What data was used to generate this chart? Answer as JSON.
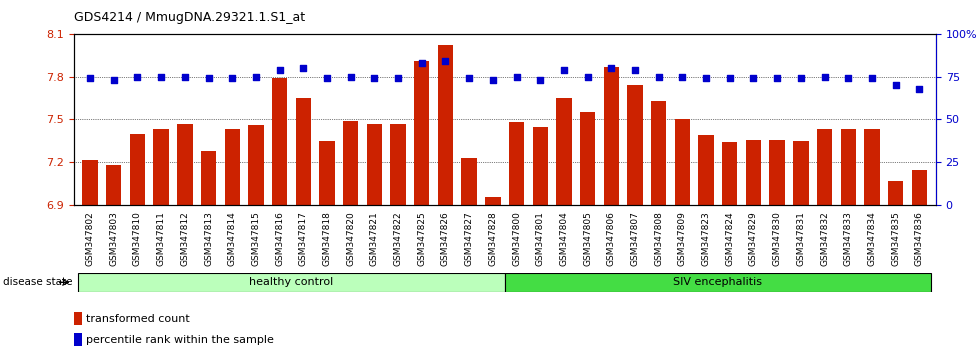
{
  "title": "GDS4214 / MmugDNA.29321.1.S1_at",
  "samples": [
    "GSM347802",
    "GSM347803",
    "GSM347810",
    "GSM347811",
    "GSM347812",
    "GSM347813",
    "GSM347814",
    "GSM347815",
    "GSM347816",
    "GSM347817",
    "GSM347818",
    "GSM347820",
    "GSM347821",
    "GSM347822",
    "GSM347825",
    "GSM347826",
    "GSM347827",
    "GSM347828",
    "GSM347800",
    "GSM347801",
    "GSM347804",
    "GSM347805",
    "GSM347806",
    "GSM347807",
    "GSM347808",
    "GSM347809",
    "GSM347823",
    "GSM347824",
    "GSM347829",
    "GSM347830",
    "GSM347831",
    "GSM347832",
    "GSM347833",
    "GSM347834",
    "GSM347835",
    "GSM347836"
  ],
  "bar_values": [
    7.22,
    7.18,
    7.4,
    7.43,
    7.47,
    7.28,
    7.43,
    7.46,
    7.79,
    7.65,
    7.35,
    7.49,
    7.47,
    7.47,
    7.91,
    8.02,
    7.23,
    6.96,
    7.48,
    7.45,
    7.65,
    7.55,
    7.87,
    7.74,
    7.63,
    7.5,
    7.39,
    7.34,
    7.36,
    7.36,
    7.35,
    7.43,
    7.43,
    7.43,
    7.07,
    7.15
  ],
  "percentile_values": [
    74,
    73,
    75,
    75,
    75,
    74,
    74,
    75,
    79,
    80,
    74,
    75,
    74,
    74,
    83,
    84,
    74,
    73,
    75,
    73,
    79,
    75,
    80,
    79,
    75,
    75,
    74,
    74,
    74,
    74,
    74,
    75,
    74,
    74,
    70,
    68
  ],
  "healthy_count": 18,
  "ylim_left": [
    6.9,
    8.1
  ],
  "ylim_right": [
    0,
    100
  ],
  "yticks_left": [
    6.9,
    7.2,
    7.5,
    7.8,
    8.1
  ],
  "yticks_right": [
    0,
    25,
    50,
    75,
    100
  ],
  "bar_color": "#cc2200",
  "dot_color": "#0000cc",
  "healthy_color": "#bbffbb",
  "siv_color": "#44dd44",
  "bg_color": "#ffffff",
  "legend_bar_label": "transformed count",
  "legend_dot_label": "percentile rank within the sample",
  "label_healthy": "healthy control",
  "label_siv": "SIV encephalitis",
  "disease_state_label": "disease state"
}
